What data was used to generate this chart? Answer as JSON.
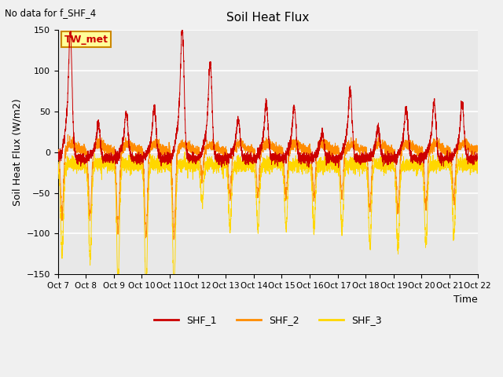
{
  "title": "Soil Heat Flux",
  "subtitle": "No data for f_SHF_4",
  "ylabel": "Soil Heat Flux (W/m2)",
  "xlabel": "Time",
  "ylim": [
    -150,
    150
  ],
  "yticks": [
    -150,
    -100,
    -50,
    0,
    50,
    100,
    150
  ],
  "x_tick_labels": [
    "Oct 7",
    "Oct 8",
    "Oct 9",
    "Oct 10",
    "Oct 11",
    "Oct 12",
    "Oct 13",
    "Oct 14",
    "Oct 15",
    "Oct 16",
    "Oct 17",
    "Oct 18",
    "Oct 19",
    "Oct 20",
    "Oct 21",
    "Oct 22"
  ],
  "color_SHF1": "#CC0000",
  "color_SHF2": "#FF8C00",
  "color_SHF3": "#FFD700",
  "legend_label1": "SHF_1",
  "legend_label2": "SHF_2",
  "legend_label3": "SHF_3",
  "annotation_label": "TW_met",
  "axes_bg_color": "#E8E8E8",
  "fig_bg_color": "#F0F0F0",
  "grid_color": "#FFFFFF",
  "n_days": 15,
  "points_per_day": 288,
  "shf1_peaks": [
    125,
    35,
    45,
    50,
    130,
    95,
    38,
    55,
    50,
    25,
    70,
    30,
    50,
    55,
    55
  ],
  "shf3_valleys": [
    -110,
    -115,
    -140,
    -150,
    -150,
    -45,
    -80,
    -80,
    -80,
    -80,
    -80,
    -100,
    -105,
    -100,
    -85
  ]
}
